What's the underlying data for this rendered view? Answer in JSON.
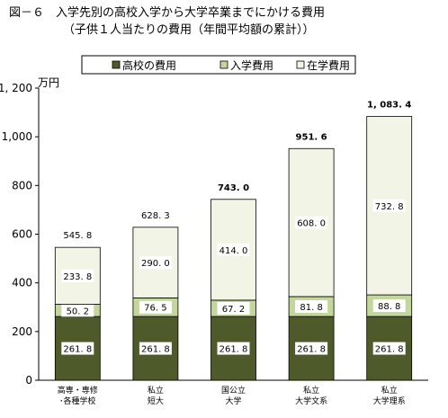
{
  "header": {
    "title": "図－６　入学先別の高校入学から大学卒業までにかける費用",
    "subtitle": "（子供１人当たりの費用（年間平均額の累計））"
  },
  "chart_data": {
    "type": "bar",
    "stacked": true,
    "unit": "万円",
    "ylim": [
      0,
      1200
    ],
    "yticks": [
      0,
      200,
      400,
      600,
      800,
      1000,
      1200
    ],
    "ytick_labels": [
      "0",
      "200",
      "400",
      "600",
      "800",
      "1,000",
      "1, 200"
    ],
    "categories": [
      [
        "高専・専修",
        "･各種学校"
      ],
      [
        "私立",
        "短大"
      ],
      [
        "国公立",
        "大学"
      ],
      [
        "私立",
        "大学文系"
      ],
      [
        "私立",
        "大学理系"
      ]
    ],
    "series": [
      {
        "name": "高校の費用",
        "color": "#4e5a2a",
        "values": [
          261.8,
          261.8,
          261.8,
          261.8,
          261.8
        ],
        "labels": [
          "261. 8",
          "261. 8",
          "261. 8",
          "261. 8",
          "261. 8"
        ]
      },
      {
        "name": "入学費用",
        "color": "#c3d69b",
        "values": [
          50.2,
          76.5,
          67.2,
          81.8,
          88.8
        ],
        "labels": [
          "50. 2",
          "76. 5",
          "67. 2",
          "81. 8",
          "88. 8"
        ]
      },
      {
        "name": "在学費用",
        "color": "#f2f4e6",
        "values": [
          233.8,
          290.0,
          414.0,
          608.0,
          732.8
        ],
        "labels": [
          "233. 8",
          "290. 0",
          "414. 0",
          "608. 0",
          "732. 8"
        ]
      }
    ],
    "totals": [
      545.8,
      628.3,
      743.0,
      951.6,
      1083.4
    ],
    "total_labels": [
      "545. 8",
      "628. 3",
      "743. 0",
      "951. 6",
      "1, 083. 4"
    ],
    "total_bold": [
      false,
      false,
      true,
      true,
      true
    ],
    "legend": {
      "position": "top"
    }
  }
}
